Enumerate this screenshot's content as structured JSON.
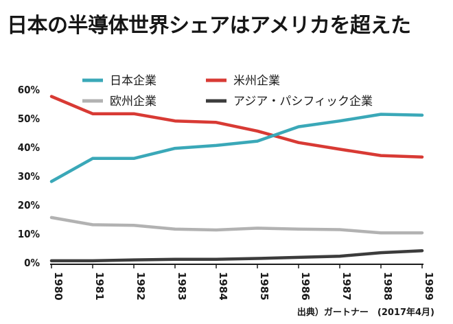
{
  "chart_data": {
    "type": "line",
    "title": "日本の半導体世界シェアはアメリカを超えた",
    "source": "出典）ガートナー　(2017年4月)",
    "x": [
      "1980",
      "1981",
      "1982",
      "1983",
      "1984",
      "1985",
      "1986",
      "1987",
      "1988",
      "1989"
    ],
    "y_ticks": [
      "60%",
      "50%",
      "40%",
      "30%",
      "20%",
      "10%",
      "0%"
    ],
    "ylim": [
      0,
      60
    ],
    "grid": false,
    "legend_placement": "top",
    "series": [
      {
        "name": "日本企業",
        "color": "#3aa8b8",
        "values": [
          28,
          36,
          36,
          39.5,
          40.5,
          42,
          47,
          49,
          51.3,
          51
        ]
      },
      {
        "name": "米州企業",
        "color": "#d83a34",
        "values": [
          57.5,
          51.5,
          51.5,
          49,
          48.5,
          45.5,
          41.5,
          39.2,
          37,
          36.5
        ]
      },
      {
        "name": "欧州企業",
        "color": "#b2b2b2",
        "values": [
          15.5,
          13,
          12.8,
          11.5,
          11.2,
          11.8,
          11.5,
          11.3,
          10.2,
          10.2
        ]
      },
      {
        "name": "アジア・パシフィック企業",
        "color": "#3c3c3c",
        "values": [
          0.5,
          0.5,
          0.8,
          1,
          1,
          1.3,
          1.7,
          2.1,
          3.3,
          4
        ]
      }
    ]
  }
}
